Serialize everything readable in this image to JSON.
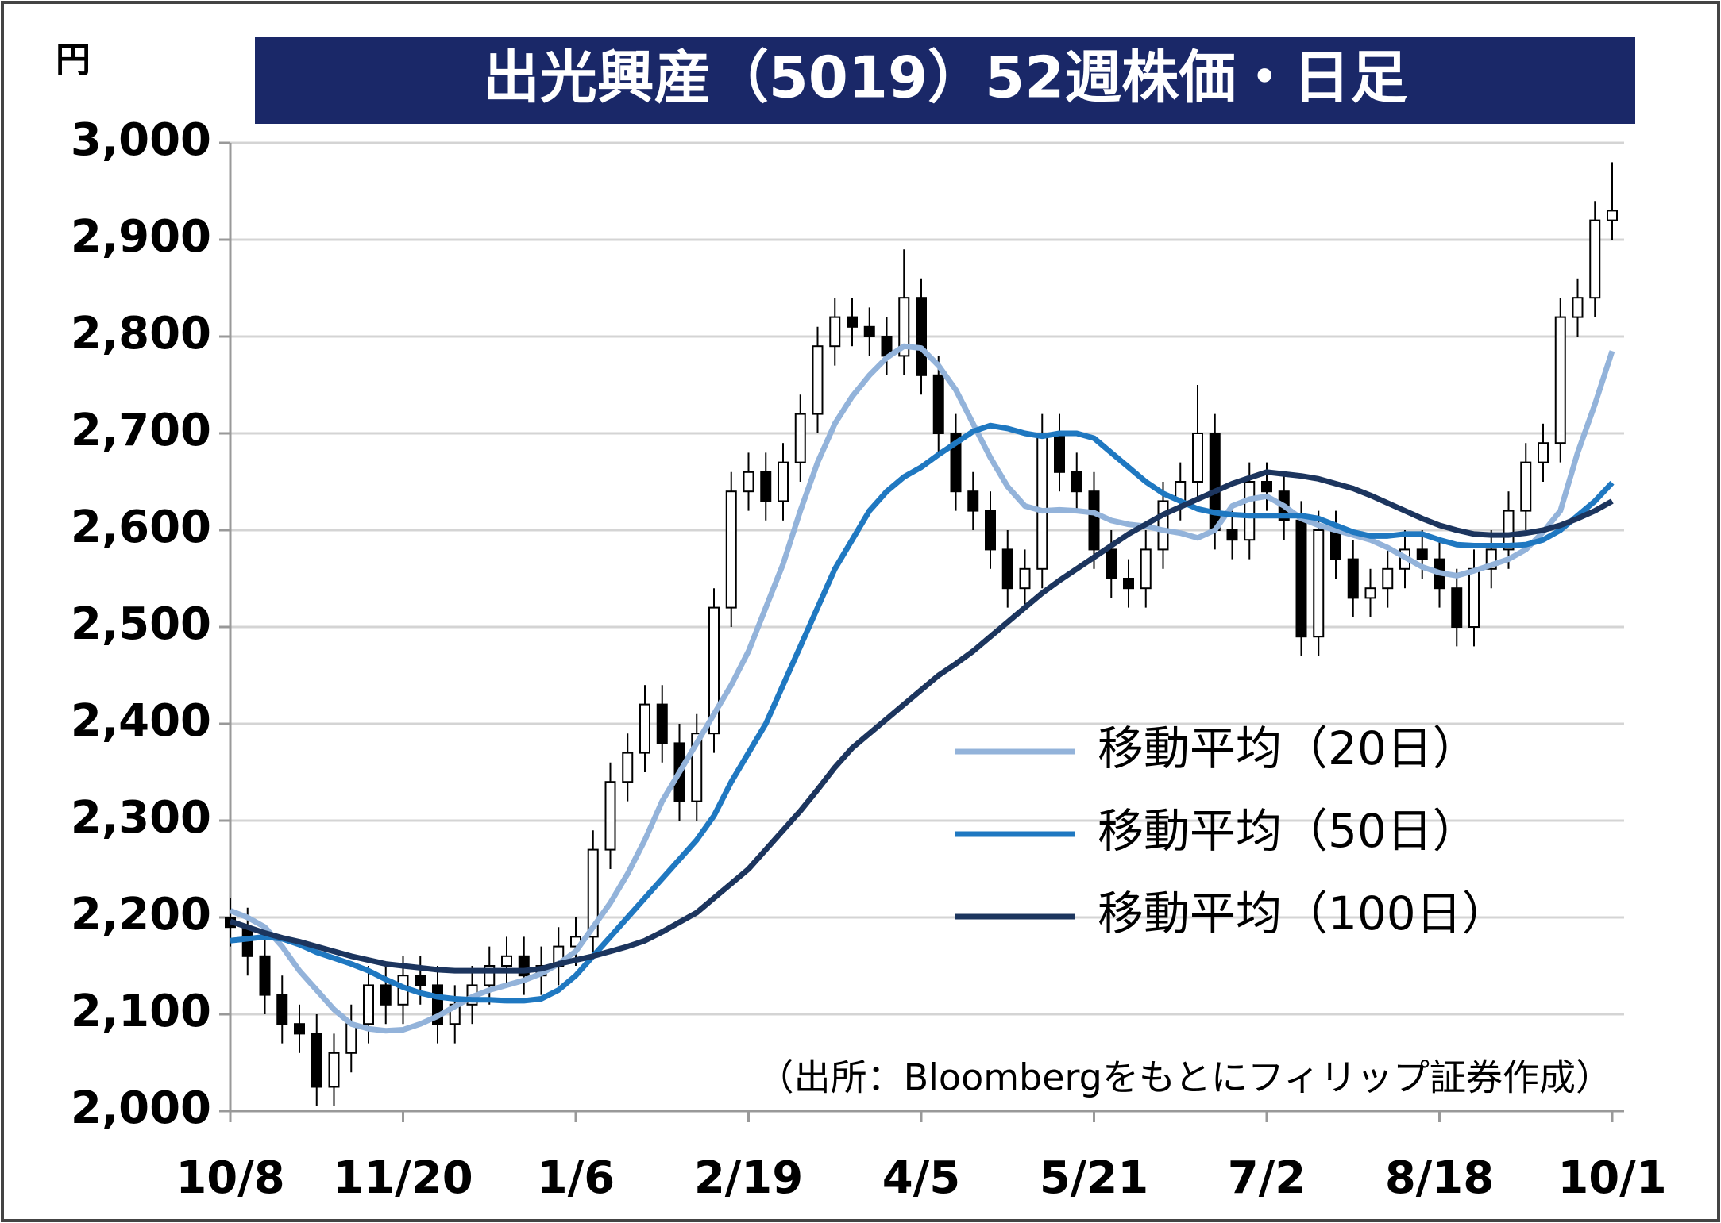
{
  "chart_data": {
    "type": "candlestick",
    "title": "出光興産（5019）52週株価・日足",
    "y_unit": "円",
    "source": "（出所：Bloombergをもとにフィリップ証券作成）",
    "categories": [
      "10/8",
      null,
      null,
      null,
      null,
      null,
      null,
      null,
      null,
      null,
      "11/20",
      null,
      null,
      null,
      null,
      null,
      null,
      null,
      null,
      null,
      "1/6",
      null,
      null,
      null,
      null,
      null,
      null,
      null,
      null,
      null,
      "2/19",
      null,
      null,
      null,
      null,
      null,
      null,
      null,
      null,
      null,
      "4/5",
      null,
      null,
      null,
      null,
      null,
      null,
      null,
      null,
      null,
      "5/21",
      null,
      null,
      null,
      null,
      null,
      null,
      null,
      null,
      null,
      "7/2",
      null,
      null,
      null,
      null,
      null,
      null,
      null,
      null,
      null,
      "8/18",
      null,
      null,
      null,
      null,
      null,
      null,
      null,
      null,
      null,
      "10/1"
    ],
    "ohlc": {
      "open": [
        2200,
        2190,
        2160,
        2120,
        2090,
        2080,
        2025,
        2060,
        2090,
        2130,
        2110,
        2140,
        2130,
        2090,
        2110,
        2130,
        2150,
        2160,
        2140,
        2150,
        2170,
        2180,
        2270,
        2340,
        2370,
        2420,
        2380,
        2320,
        2390,
        2520,
        2640,
        2660,
        2630,
        2670,
        2720,
        2790,
        2820,
        2810,
        2800,
        2780,
        2840,
        2760,
        2700,
        2640,
        2620,
        2580,
        2540,
        2560,
        2700,
        2660,
        2640,
        2580,
        2550,
        2540,
        2580,
        2630,
        2650,
        2700,
        2600,
        2590,
        2650,
        2640,
        2610,
        2490,
        2600,
        2570,
        2530,
        2540,
        2560,
        2580,
        2570,
        2540,
        2500,
        2560,
        2580,
        2620,
        2670,
        2690,
        2820,
        2840,
        2920
      ],
      "high": [
        2220,
        2210,
        2180,
        2140,
        2110,
        2100,
        2080,
        2110,
        2150,
        2150,
        2160,
        2160,
        2150,
        2130,
        2150,
        2170,
        2180,
        2180,
        2170,
        2190,
        2200,
        2290,
        2360,
        2390,
        2440,
        2440,
        2400,
        2410,
        2540,
        2660,
        2680,
        2680,
        2690,
        2740,
        2810,
        2840,
        2840,
        2830,
        2820,
        2890,
        2860,
        2780,
        2720,
        2660,
        2640,
        2600,
        2580,
        2720,
        2720,
        2680,
        2660,
        2600,
        2570,
        2600,
        2650,
        2670,
        2750,
        2720,
        2620,
        2670,
        2670,
        2660,
        2630,
        2620,
        2620,
        2590,
        2560,
        2580,
        2600,
        2600,
        2590,
        2560,
        2580,
        2600,
        2640,
        2690,
        2710,
        2840,
        2860,
        2940,
        2980
      ],
      "low": [
        2170,
        2140,
        2100,
        2070,
        2060,
        2005,
        2005,
        2040,
        2070,
        2090,
        2090,
        2110,
        2070,
        2070,
        2090,
        2110,
        2130,
        2120,
        2120,
        2130,
        2150,
        2160,
        2250,
        2320,
        2350,
        2360,
        2300,
        2300,
        2370,
        2500,
        2620,
        2610,
        2610,
        2650,
        2700,
        2770,
        2790,
        2780,
        2760,
        2760,
        2740,
        2680,
        2620,
        2600,
        2560,
        2520,
        2520,
        2540,
        2640,
        2620,
        2560,
        2530,
        2520,
        2520,
        2560,
        2610,
        2630,
        2580,
        2570,
        2570,
        2620,
        2590,
        2470,
        2470,
        2550,
        2510,
        2510,
        2520,
        2540,
        2550,
        2520,
        2480,
        2480,
        2540,
        2560,
        2600,
        2650,
        2670,
        2800,
        2820,
        2900
      ],
      "close": [
        2190,
        2160,
        2120,
        2090,
        2080,
        2025,
        2060,
        2090,
        2130,
        2110,
        2140,
        2130,
        2090,
        2110,
        2130,
        2150,
        2160,
        2140,
        2150,
        2170,
        2180,
        2270,
        2340,
        2370,
        2420,
        2380,
        2320,
        2390,
        2520,
        2640,
        2660,
        2630,
        2670,
        2720,
        2790,
        2820,
        2810,
        2800,
        2780,
        2840,
        2760,
        2700,
        2640,
        2620,
        2580,
        2540,
        2560,
        2700,
        2660,
        2640,
        2580,
        2550,
        2540,
        2580,
        2630,
        2650,
        2700,
        2600,
        2590,
        2650,
        2640,
        2610,
        2490,
        2600,
        2570,
        2530,
        2540,
        2560,
        2580,
        2570,
        2540,
        2500,
        2560,
        2580,
        2620,
        2670,
        2690,
        2820,
        2840,
        2920,
        2930
      ]
    },
    "series": [
      {
        "name": "移動平均（20日）",
        "color": "#93b3da",
        "values": [
          2207,
          2200,
          2190,
          2170,
          2145,
          2125,
          2105,
          2090,
          2085,
          2083,
          2084,
          2090,
          2098,
          2108,
          2118,
          2125,
          2130,
          2135,
          2142,
          2152,
          2165,
          2190,
          2215,
          2245,
          2280,
          2320,
          2350,
          2380,
          2410,
          2440,
          2475,
          2520,
          2565,
          2620,
          2670,
          2710,
          2738,
          2760,
          2778,
          2790,
          2788,
          2770,
          2745,
          2710,
          2675,
          2645,
          2625,
          2620,
          2621,
          2620,
          2618,
          2610,
          2606,
          2604,
          2600,
          2597,
          2592,
          2600,
          2625,
          2632,
          2635,
          2625,
          2612,
          2605,
          2600,
          2595,
          2590,
          2582,
          2572,
          2562,
          2556,
          2553,
          2558,
          2564,
          2570,
          2580,
          2598,
          2620,
          2680,
          2730,
          2785
        ]
      },
      {
        "name": "移動平均（50日）",
        "color": "#1f78c1",
        "values": [
          2176,
          2178,
          2180,
          2178,
          2172,
          2164,
          2158,
          2152,
          2145,
          2136,
          2128,
          2122,
          2118,
          2116,
          2115,
          2115,
          2114,
          2114,
          2116,
          2125,
          2140,
          2160,
          2180,
          2200,
          2220,
          2240,
          2260,
          2280,
          2305,
          2340,
          2370,
          2400,
          2440,
          2480,
          2520,
          2560,
          2590,
          2620,
          2640,
          2655,
          2665,
          2678,
          2690,
          2702,
          2708,
          2705,
          2700,
          2697,
          2700,
          2700,
          2695,
          2680,
          2665,
          2650,
          2638,
          2630,
          2622,
          2618,
          2616,
          2615,
          2615,
          2615,
          2615,
          2612,
          2605,
          2598,
          2594,
          2594,
          2596,
          2596,
          2590,
          2585,
          2584,
          2584,
          2584,
          2585,
          2590,
          2600,
          2615,
          2630,
          2649
        ]
      },
      {
        "name": "移動平均（100日）",
        "color": "#1c355e",
        "values": [
          2196,
          2190,
          2184,
          2179,
          2175,
          2170,
          2165,
          2160,
          2156,
          2152,
          2150,
          2148,
          2146,
          2145,
          2145,
          2145,
          2145,
          2145,
          2147,
          2152,
          2156,
          2160,
          2165,
          2170,
          2176,
          2185,
          2195,
          2205,
          2220,
          2235,
          2250,
          2270,
          2290,
          2310,
          2332,
          2355,
          2375,
          2390,
          2405,
          2420,
          2435,
          2450,
          2462,
          2475,
          2490,
          2505,
          2520,
          2535,
          2548,
          2560,
          2572,
          2584,
          2596,
          2606,
          2616,
          2624,
          2632,
          2640,
          2648,
          2654,
          2660,
          2658,
          2656,
          2653,
          2648,
          2643,
          2636,
          2628,
          2620,
          2612,
          2605,
          2600,
          2596,
          2595,
          2595,
          2597,
          2600,
          2605,
          2612,
          2620,
          2630
        ]
      }
    ],
    "ylim": [
      2000,
      3000
    ],
    "yticks": [
      {
        "value": 2000,
        "label": "2,000"
      },
      {
        "value": 2100,
        "label": "2,100"
      },
      {
        "value": 2200,
        "label": "2,200"
      },
      {
        "value": 2300,
        "label": "2,300"
      },
      {
        "value": 2400,
        "label": "2,400"
      },
      {
        "value": 2500,
        "label": "2,500"
      },
      {
        "value": 2600,
        "label": "2,600"
      },
      {
        "value": 2700,
        "label": "2,700"
      },
      {
        "value": 2800,
        "label": "2,800"
      },
      {
        "value": 2900,
        "label": "2,900"
      },
      {
        "value": 3000,
        "label": "3,000"
      }
    ],
    "grid": true,
    "up_color": "#ffffff",
    "down_color": "#000000"
  }
}
